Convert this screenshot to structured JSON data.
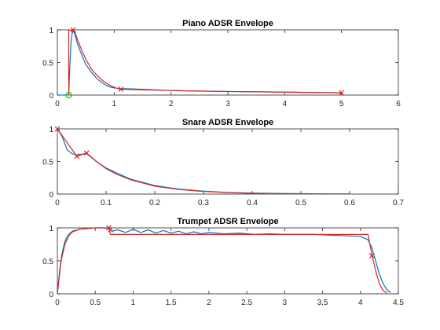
{
  "chart_data": [
    {
      "type": "line",
      "title": "Piano ADSR Envelope",
      "xlim": [
        0,
        6
      ],
      "ylim": [
        0,
        1
      ],
      "xticks": [
        0,
        1,
        2,
        3,
        4,
        5,
        6
      ],
      "xtick_labels": [
        "0",
        "1",
        "2",
        "3",
        "4",
        "5",
        "6"
      ],
      "yticks": [
        0,
        0.5,
        1
      ],
      "ytick_labels": [
        "0",
        "0.5",
        "1"
      ],
      "grid": false,
      "series": [
        {
          "color": "#0072BD",
          "x": [
            0,
            0.2,
            0.22,
            0.24,
            0.26,
            0.28,
            0.3,
            0.32,
            0.35,
            0.4,
            0.45,
            0.5,
            0.6,
            0.7,
            0.8,
            0.9,
            1.0,
            1.1,
            1.3,
            1.6,
            2.0,
            2.5,
            3.0,
            3.5,
            4.0,
            4.5,
            5.0
          ],
          "y": [
            0,
            0,
            0.45,
            0.8,
            0.95,
            0.98,
            0.95,
            0.9,
            0.8,
            0.68,
            0.57,
            0.47,
            0.35,
            0.25,
            0.18,
            0.13,
            0.11,
            0.1,
            0.095,
            0.085,
            0.07,
            0.06,
            0.055,
            0.05,
            0.045,
            0.04,
            0.035
          ]
        },
        {
          "color": "#D62728",
          "x": [
            0.2,
            0.2,
            0.3,
            0.4,
            0.5,
            0.6,
            0.7,
            0.8,
            0.9,
            1.0,
            1.1,
            1.5,
            2.0,
            3.0,
            4.0,
            5.0
          ],
          "y": [
            0,
            1.0,
            0.98,
            0.75,
            0.55,
            0.4,
            0.3,
            0.22,
            0.16,
            0.12,
            0.09,
            0.08,
            0.07,
            0.055,
            0.045,
            0.035
          ]
        }
      ],
      "markers": [
        {
          "shape": "x",
          "color": "#D62728",
          "x": [
            0.28,
            1.12,
            5.0
          ],
          "y": [
            1.0,
            0.09,
            0.035
          ]
        },
        {
          "shape": "o",
          "color": "#00CC00",
          "x": [
            0.2
          ],
          "y": [
            0.0
          ]
        }
      ]
    },
    {
      "type": "line",
      "title": "Snare ADSR Envelope",
      "xlim": [
        0,
        0.7
      ],
      "ylim": [
        0,
        1
      ],
      "xticks": [
        0,
        0.1,
        0.2,
        0.3,
        0.4,
        0.5,
        0.6,
        0.7
      ],
      "xtick_labels": [
        "0",
        "0.1",
        "0.2",
        "0.3",
        "0.4",
        "0.5",
        "0.6",
        "0.7"
      ],
      "yticks": [
        0,
        0.5,
        1
      ],
      "ytick_labels": [
        "0",
        "0.5",
        "1"
      ],
      "grid": false,
      "series": [
        {
          "color": "#0072BD",
          "x": [
            0,
            0.01,
            0.02,
            0.03,
            0.04,
            0.05,
            0.06,
            0.08,
            0.1,
            0.12,
            0.15,
            0.2,
            0.25,
            0.3,
            0.35,
            0.4,
            0.45,
            0.5,
            0.55,
            0.6
          ],
          "y": [
            1.0,
            0.88,
            0.68,
            0.62,
            0.6,
            0.61,
            0.62,
            0.5,
            0.4,
            0.33,
            0.23,
            0.13,
            0.075,
            0.045,
            0.025,
            0.015,
            0.01,
            0.006,
            0.004,
            0.003
          ]
        },
        {
          "color": "#D62728",
          "x": [
            0,
            0.04,
            0.06,
            0.08,
            0.1,
            0.12,
            0.15,
            0.2,
            0.25,
            0.3,
            0.35,
            0.4,
            0.45,
            0.5,
            0.55
          ],
          "y": [
            1.0,
            0.58,
            0.63,
            0.5,
            0.39,
            0.31,
            0.22,
            0.12,
            0.07,
            0.04,
            0.022,
            0.012,
            0.007,
            0.004,
            0.002
          ]
        }
      ],
      "markers": [
        {
          "shape": "x",
          "color": "#D62728",
          "x": [
            0.0,
            0.04,
            0.06
          ],
          "y": [
            1.0,
            0.58,
            0.63
          ]
        }
      ]
    },
    {
      "type": "line",
      "title": "Trumpet ADSR Envelope",
      "xlim": [
        0,
        4.5
      ],
      "ylim": [
        0,
        1
      ],
      "xticks": [
        0,
        0.5,
        1,
        1.5,
        2,
        2.5,
        3,
        3.5,
        4,
        4.5
      ],
      "xtick_labels": [
        "0",
        "0.5",
        "1",
        "1.5",
        "2",
        "2.5",
        "3",
        "3.5",
        "4",
        "4.5"
      ],
      "yticks": [
        0,
        0.5,
        1
      ],
      "ytick_labels": [
        "0",
        "0.5",
        "1"
      ],
      "grid": false,
      "series": [
        {
          "color": "#0072BD",
          "x": [
            0,
            0.03,
            0.06,
            0.1,
            0.15,
            0.2,
            0.3,
            0.4,
            0.5,
            0.6,
            0.68,
            0.72,
            0.8,
            0.9,
            1.0,
            1.1,
            1.2,
            1.3,
            1.4,
            1.5,
            1.6,
            1.7,
            1.8,
            1.9,
            2.0,
            2.2,
            2.4,
            2.6,
            2.8,
            3.0,
            3.2,
            3.4,
            3.6,
            3.8,
            4.0,
            4.1,
            4.15,
            4.2,
            4.25,
            4.3,
            4.35,
            4.4
          ],
          "y": [
            0,
            0.35,
            0.6,
            0.8,
            0.9,
            0.95,
            0.98,
            0.99,
            1.0,
            1.0,
            0.99,
            0.95,
            0.97,
            0.93,
            0.98,
            0.93,
            0.97,
            0.92,
            0.96,
            0.92,
            0.95,
            0.91,
            0.94,
            0.91,
            0.93,
            0.91,
            0.92,
            0.9,
            0.91,
            0.9,
            0.9,
            0.9,
            0.89,
            0.88,
            0.87,
            0.82,
            0.7,
            0.5,
            0.3,
            0.15,
            0.06,
            0.02
          ]
        },
        {
          "color": "#D62728",
          "x": [
            0,
            0.05,
            0.1,
            0.15,
            0.2,
            0.3,
            0.4,
            0.5,
            0.68,
            0.7,
            4.1,
            4.15,
            4.2,
            4.25,
            4.3,
            4.35
          ],
          "y": [
            0,
            0.5,
            0.75,
            0.88,
            0.94,
            0.98,
            0.99,
            1.0,
            1.0,
            0.9,
            0.9,
            0.6,
            0.35,
            0.15,
            0.05,
            0.01
          ]
        }
      ],
      "markers": [
        {
          "shape": "x",
          "color": "#D62728",
          "x": [
            0.68,
            0.7,
            4.15
          ],
          "y": [
            1.0,
            0.97,
            0.58
          ]
        }
      ]
    }
  ]
}
